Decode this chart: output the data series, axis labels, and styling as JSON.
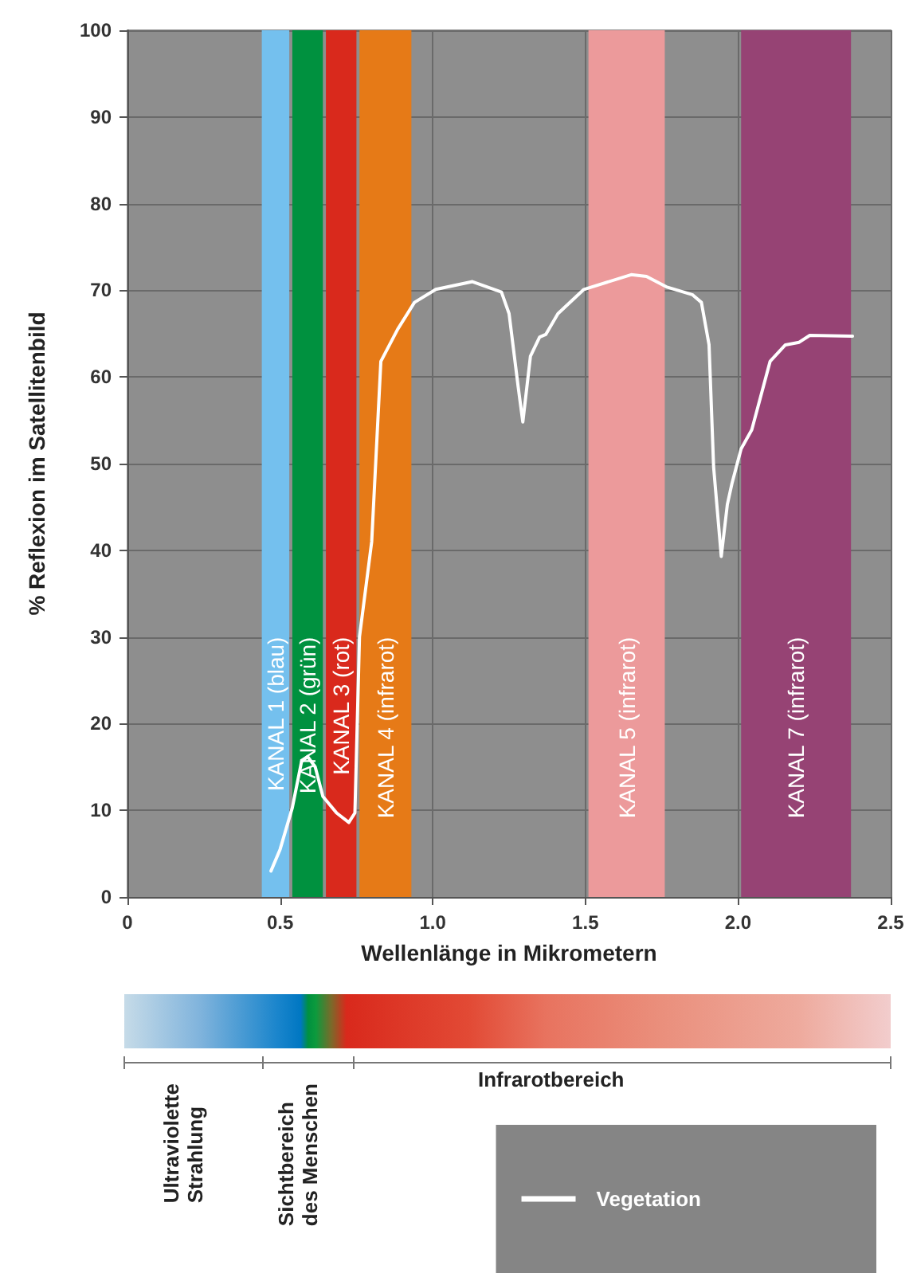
{
  "chart_data": {
    "type": "line",
    "xlabel": "Wellenlänge in Mikrometern",
    "ylabel": "% Reflexion im Satellitenbild",
    "xlim": [
      0,
      2.5
    ],
    "xticks": [
      0,
      0.5,
      {
        "value": 1,
        "label": "1.0"
      },
      1.5,
      {
        "value": 2,
        "label": "2.0"
      },
      2.5
    ],
    "ylim": [
      0,
      100
    ],
    "yticks": [
      0,
      10,
      20,
      30,
      40,
      50,
      60,
      70,
      80,
      90,
      100
    ],
    "grid": true,
    "legend": "bottom right",
    "line_style": "solid",
    "marker": "none",
    "series": [
      {
        "name": "Vegetation",
        "color": "#ffffff",
        "x": [
          0.47,
          0.5,
          0.54,
          0.57,
          0.59,
          0.615,
          0.64,
          0.685,
          0.725,
          0.745,
          0.76,
          0.8,
          0.83,
          0.885,
          0.94,
          1.01,
          1.13,
          1.225,
          1.25,
          1.28,
          1.295,
          1.32,
          1.35,
          1.37,
          1.41,
          1.495,
          1.65,
          1.7,
          1.765,
          1.85,
          1.88,
          1.905,
          1.92,
          1.945,
          1.965,
          1.98,
          2.01,
          2.045,
          2.105,
          2.155,
          2.2,
          2.235,
          2.375
        ],
        "values": [
          3,
          5.5,
          10.3,
          15.6,
          16.2,
          15,
          11.6,
          9.7,
          8.6,
          9.7,
          30,
          41,
          61.8,
          65.5,
          68.6,
          70.1,
          71,
          69.8,
          67.3,
          58.8,
          54.8,
          62.4,
          64.6,
          64.9,
          67.3,
          70.1,
          71.8,
          71.6,
          70.4,
          69.5,
          68.6,
          63.7,
          49.6,
          39.3,
          45.3,
          47.7,
          51.7,
          53.9,
          61.8,
          63.7,
          64,
          64.8,
          64.7
        ]
      }
    ],
    "bands": [
      {
        "axis": "x",
        "from": 0.44,
        "to": 0.53,
        "label": "KANAL 1 (blau)",
        "color": "#74c0ee"
      },
      {
        "axis": "x",
        "from": 0.54,
        "to": 0.64,
        "label": "KANAL 2 (grün)",
        "color": "#00913f"
      },
      {
        "axis": "x",
        "from": 0.65,
        "to": 0.75,
        "label": "KANAL 3 (rot)",
        "color": "#d9291c"
      },
      {
        "axis": "x",
        "from": 0.76,
        "to": 0.93,
        "label": "KANAL 4 (infrarot)",
        "color": "#e67a17"
      },
      {
        "axis": "x",
        "from": 1.51,
        "to": 1.76,
        "label": "KANAL 5 (infrarot)",
        "color": "#ec9a9b"
      },
      {
        "axis": "x",
        "from": 2.01,
        "to": 2.37,
        "label": "KANAL 7 (infrarot)",
        "color": "#964374"
      }
    ],
    "annotations": [
      "Ultraviolette\nStrahlung",
      "Sichtbereich\ndes Menschen",
      "Infrarotbereich"
    ]
  }
}
